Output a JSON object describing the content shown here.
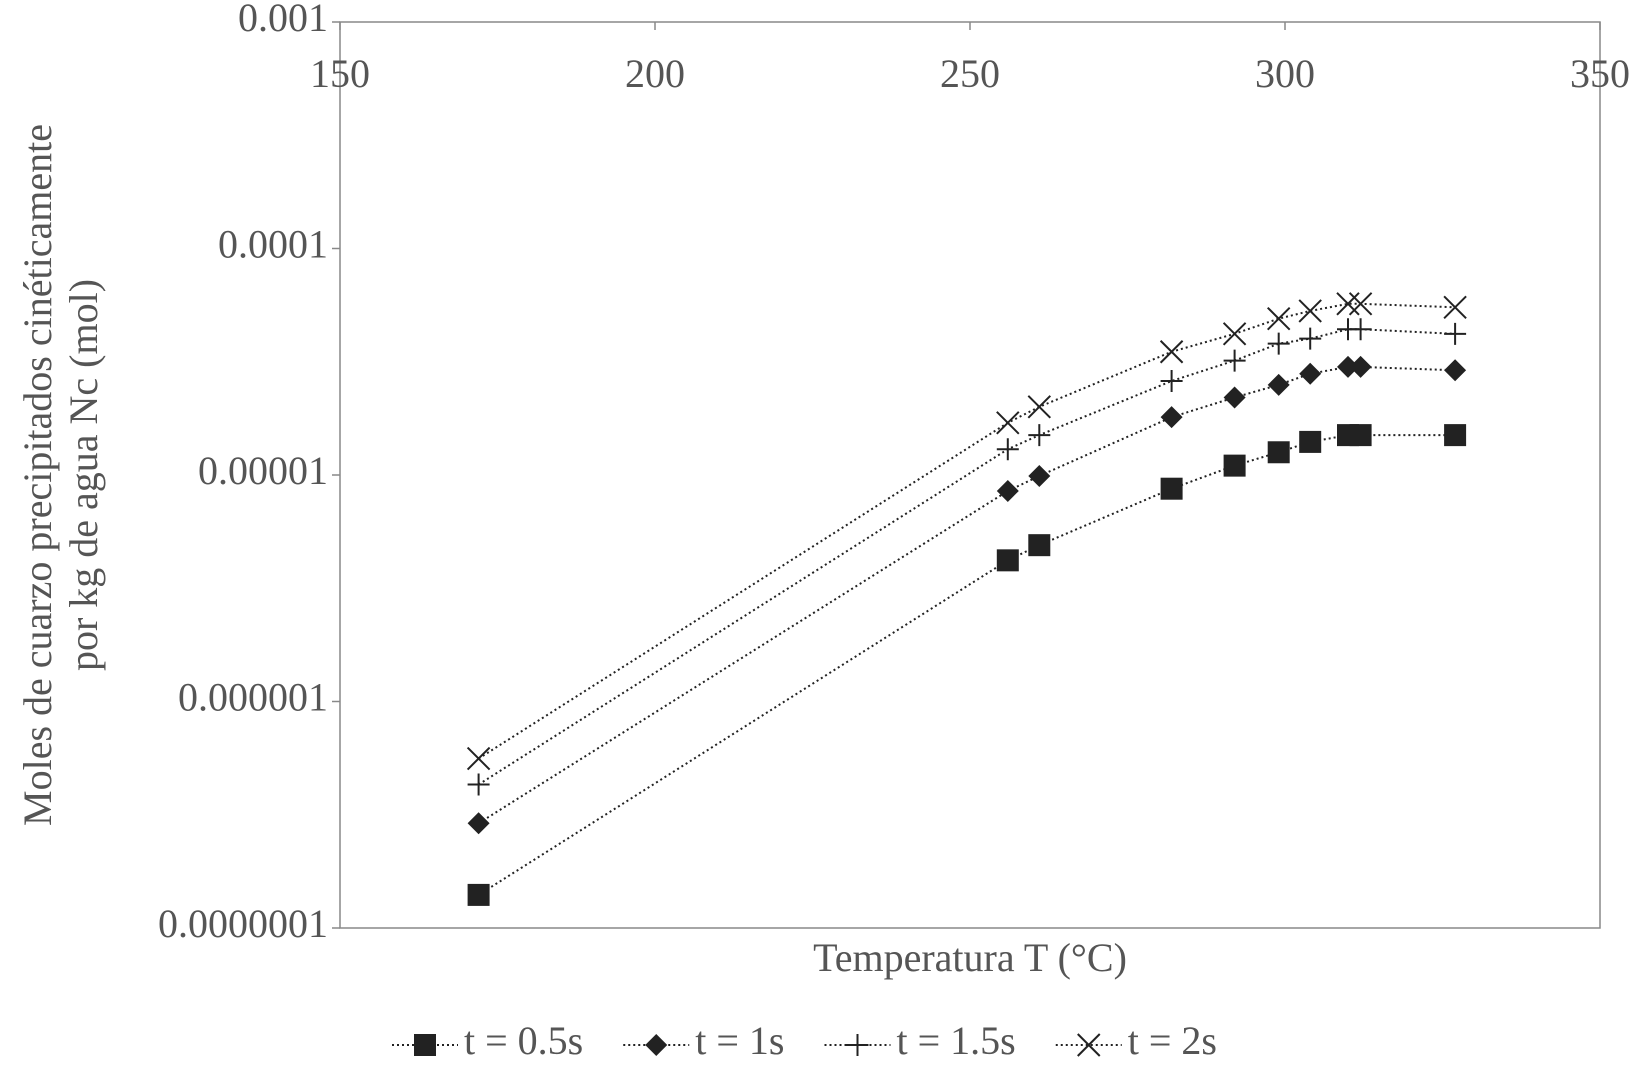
{
  "chart_data": {
    "type": "line",
    "xlabel": "Temperatura T (°C)",
    "ylabel": [
      "Moles de cuarzo precipitados cinéticamente",
      "por kg de agua Nc (mol)"
    ],
    "x": [
      172,
      256,
      261,
      282,
      292,
      299,
      304,
      310,
      312,
      327
    ],
    "xlim": [
      150,
      350
    ],
    "xticks": [
      150,
      200,
      250,
      300,
      350
    ],
    "xaxis_position": "top",
    "ylim": [
      1e-07,
      0.001
    ],
    "yscale": "log",
    "yticks": [
      0.001,
      0.0001,
      1e-05,
      1e-06,
      {
        "value": 1e-07,
        "label": "0.0000001"
      }
    ],
    "grid": false,
    "legend": "bottom",
    "series": [
      {
        "name": "t = 0.5s",
        "color": "#222222",
        "marker": "square",
        "values": [
          1.4e-07,
          4.2e-06,
          4.9e-06,
          8.7e-06,
          1.1e-05,
          1.26e-05,
          1.4e-05,
          1.5e-05,
          1.5e-05,
          1.5e-05
        ]
      },
      {
        "name": "t = 1s",
        "color": "#222222",
        "marker": "diamond",
        "values": [
          2.9e-07,
          8.5e-06,
          9.9e-06,
          1.8e-05,
          2.2e-05,
          2.5e-05,
          2.8e-05,
          3e-05,
          3e-05,
          2.9e-05
        ]
      },
      {
        "name": "t = 1.5s",
        "color": "#222222",
        "marker": "plus",
        "values": [
          4.3e-07,
          1.3e-05,
          1.5e-05,
          2.6e-05,
          3.2e-05,
          3.8e-05,
          4e-05,
          4.4e-05,
          4.4e-05,
          4.2e-05
        ]
      },
      {
        "name": "t = 2s",
        "color": "#222222",
        "marker": "x",
        "values": [
          5.6e-07,
          1.7e-05,
          2e-05,
          3.5e-05,
          4.2e-05,
          4.9e-05,
          5.3e-05,
          5.7e-05,
          5.7e-05,
          5.5e-05
        ]
      }
    ]
  }
}
